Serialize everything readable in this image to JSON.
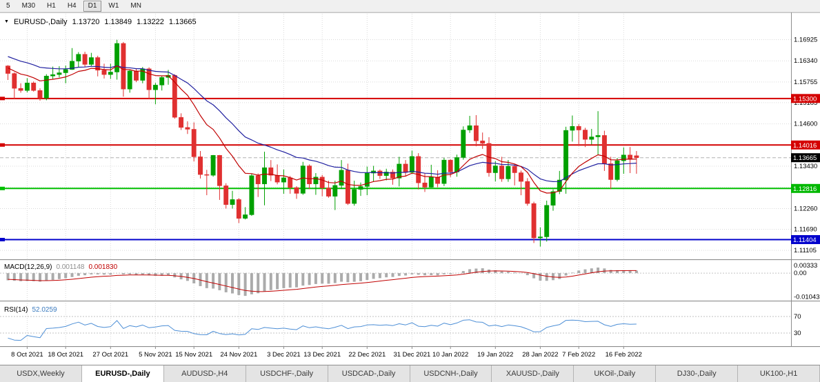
{
  "toolbar": {
    "timeframes": [
      "5",
      "M30",
      "H1",
      "H4",
      "D1",
      "W1",
      "MN"
    ],
    "active": "D1"
  },
  "chart": {
    "symbol": "EURUSD-,Daily",
    "ohlc": {
      "open": "1.13720",
      "high": "1.13849",
      "low": "1.13222",
      "close": "1.13665"
    }
  },
  "price_axis": {
    "labels": [
      {
        "text": "1.16925",
        "price": 1.16925
      },
      {
        "text": "1.16340",
        "price": 1.1634
      },
      {
        "text": "1.15755",
        "price": 1.15755
      },
      {
        "text": "1.15185",
        "price": 1.15185
      },
      {
        "text": "1.14600",
        "price": 1.146
      },
      {
        "text": "1.13430",
        "price": 1.1343
      },
      {
        "text": "1.12260",
        "price": 1.1226
      },
      {
        "text": "1.11690",
        "price": 1.1169
      },
      {
        "text": "1.11105",
        "price": 1.11105
      }
    ],
    "grid_prices": [
      1.16925,
      1.1634,
      1.15755,
      1.15185,
      1.146,
      1.14015,
      1.1343,
      1.12845,
      1.1226,
      1.1169,
      1.11105
    ],
    "tags": [
      {
        "text": "1.15300",
        "price": 1.153,
        "color": "#d40000"
      },
      {
        "text": "1.14016",
        "price": 1.14016,
        "color": "#d40000"
      },
      {
        "text": "1.13665",
        "price": 1.13665,
        "color": "#000000",
        "current": true
      },
      {
        "text": "1.12816",
        "price": 1.12816,
        "color": "#00b800"
      },
      {
        "text": "1.11404",
        "price": 1.11404,
        "color": "#0000cc"
      }
    ],
    "current_price": {
      "text": "1.13665",
      "price": 1.13665
    }
  },
  "hlines": [
    {
      "label": "1.15300",
      "price": 1.153,
      "color": "#d40000"
    },
    {
      "label": "1.14016",
      "price": 1.14016,
      "color": "#d40000"
    },
    {
      "label": "1.12816",
      "price": 1.12816,
      "color": "#00c000"
    },
    {
      "label": "1.11404",
      "price": 1.11404,
      "color": "#0000cc"
    }
  ],
  "indicators": {
    "macd": {
      "label": "MACD(12,26,9)",
      "value_main": "0.001148",
      "value_signal": "0.001830",
      "axis": [
        {
          "text": "0.00333",
          "value": 0.00333
        },
        {
          "text": "0.00",
          "value": 0
        },
        {
          "text": "-0.01043",
          "value": -0.01043
        }
      ]
    },
    "rsi": {
      "label": "RSI(14)",
      "value": "52.0259",
      "levels": [
        {
          "text": "70",
          "value": 70
        },
        {
          "text": "30",
          "value": 30
        }
      ]
    }
  },
  "date_axis": {
    "ticks": [
      {
        "text": "8 Oct 2021",
        "index": 3
      },
      {
        "text": "18 Oct 2021",
        "index": 9
      },
      {
        "text": "27 Oct 2021",
        "index": 16
      },
      {
        "text": "5 Nov 2021",
        "index": 23
      },
      {
        "text": "15 Nov 2021",
        "index": 29
      },
      {
        "text": "24 Nov 2021",
        "index": 36
      },
      {
        "text": "3 Dec 2021",
        "index": 43
      },
      {
        "text": "13 Dec 2021",
        "index": 49
      },
      {
        "text": "22 Dec 2021",
        "index": 56
      },
      {
        "text": "31 Dec 2021",
        "index": 63
      },
      {
        "text": "10 Jan 2022",
        "index": 69
      },
      {
        "text": "19 Jan 2022",
        "index": 76
      },
      {
        "text": "28 Jan 2022",
        "index": 83
      },
      {
        "text": "7 Feb 2022",
        "index": 89
      },
      {
        "text": "16 Feb 2022",
        "index": 96
      }
    ]
  },
  "tabs": {
    "items": [
      "USDX,Weekly",
      "EURUSD-,Daily",
      "AUDUSD-,H4",
      "USDCHF-,Daily",
      "USDCAD-,Daily",
      "USDCNH-,Daily",
      "XAUUSD-,Daily",
      "UKOil-,Daily",
      "DJ30-,Daily",
      "UK100-,H1"
    ],
    "active_index": 1
  },
  "chart_data": {
    "type": "candlestick",
    "title": "EURUSD-,Daily",
    "symbol": "EURUSD",
    "period": "Daily",
    "price_range": [
      1.1088,
      1.176
    ],
    "macd_range": [
      -0.0118,
      0.0046
    ],
    "ma_periods": [
      12,
      26
    ],
    "macd_params": [
      12,
      26,
      9
    ],
    "rsi_period": 14,
    "colors": {
      "bull": "#00a000",
      "bear": "#e03030",
      "ma_fast": "#c00000",
      "ma_slow": "#2020a0",
      "macd_hist": "#ababab",
      "macd_signal": "#c00000",
      "rsi": "#4c8ed6",
      "grid": "#d9d9d9"
    },
    "pre_closes": [
      1.172,
      1.1712,
      1.1705,
      1.1698,
      1.169,
      1.1682,
      1.1675,
      1.1668,
      1.166,
      1.1652,
      1.1645,
      1.1638,
      1.163,
      1.1622,
      1.1615,
      1.1608,
      1.16,
      1.1592,
      1.1585,
      1.1578
    ],
    "ohlc": [
      [
        1.162,
        1.1622,
        1.1581,
        1.1599
      ],
      [
        1.1599,
        1.1602,
        1.1529,
        1.1558
      ],
      [
        1.1558,
        1.1572,
        1.1546,
        1.1552
      ],
      [
        1.1552,
        1.1586,
        1.1547,
        1.1573
      ],
      [
        1.1573,
        1.1577,
        1.1549,
        1.1552
      ],
      [
        1.1552,
        1.1558,
        1.1524,
        1.1531
      ],
      [
        1.1531,
        1.1597,
        1.1525,
        1.1592
      ],
      [
        1.1592,
        1.1618,
        1.1582,
        1.1596
      ],
      [
        1.1596,
        1.1619,
        1.1588,
        1.1601
      ],
      [
        1.1601,
        1.1621,
        1.1572,
        1.161
      ],
      [
        1.161,
        1.1669,
        1.1609,
        1.1633
      ],
      [
        1.1633,
        1.1658,
        1.1617,
        1.1652
      ],
      [
        1.1652,
        1.1659,
        1.1617,
        1.1624
      ],
      [
        1.1624,
        1.1656,
        1.162,
        1.1643
      ],
      [
        1.1643,
        1.1648,
        1.1591,
        1.1608
      ],
      [
        1.1608,
        1.1626,
        1.1585,
        1.1596
      ],
      [
        1.1596,
        1.1626,
        1.1584,
        1.1603
      ],
      [
        1.1603,
        1.1692,
        1.1582,
        1.1682
      ],
      [
        1.1682,
        1.1686,
        1.1535,
        1.1556
      ],
      [
        1.1556,
        1.1609,
        1.1546,
        1.1606
      ],
      [
        1.1606,
        1.1612,
        1.1575,
        1.158
      ],
      [
        1.158,
        1.1617,
        1.1572,
        1.1612
      ],
      [
        1.1612,
        1.1616,
        1.1528,
        1.1554
      ],
      [
        1.1554,
        1.1573,
        1.1514,
        1.1567
      ],
      [
        1.1567,
        1.1593,
        1.1552,
        1.1588
      ],
      [
        1.1588,
        1.1609,
        1.1568,
        1.1594
      ],
      [
        1.1594,
        1.1597,
        1.1474,
        1.1478
      ],
      [
        1.1478,
        1.1489,
        1.1443,
        1.145
      ],
      [
        1.145,
        1.1467,
        1.1432,
        1.1445
      ],
      [
        1.1445,
        1.1464,
        1.1356,
        1.1369
      ],
      [
        1.1369,
        1.1385,
        1.1309,
        1.132
      ],
      [
        1.132,
        1.1333,
        1.1263,
        1.1318
      ],
      [
        1.1318,
        1.1374,
        1.1314,
        1.1373
      ],
      [
        1.1373,
        1.1374,
        1.125,
        1.1289
      ],
      [
        1.1289,
        1.1296,
        1.1226,
        1.1237
      ],
      [
        1.1237,
        1.1275,
        1.1226,
        1.1251
      ],
      [
        1.1251,
        1.1255,
        1.1186,
        1.1199
      ],
      [
        1.1199,
        1.123,
        1.1196,
        1.1209
      ],
      [
        1.1209,
        1.1323,
        1.1206,
        1.1317
      ],
      [
        1.1317,
        1.1323,
        1.1258,
        1.1294
      ],
      [
        1.1294,
        1.1383,
        1.1235,
        1.1339
      ],
      [
        1.1339,
        1.136,
        1.1302,
        1.1318
      ],
      [
        1.1318,
        1.1348,
        1.1293,
        1.1299
      ],
      [
        1.1299,
        1.1334,
        1.1267,
        1.1311
      ],
      [
        1.1311,
        1.1316,
        1.1267,
        1.1284
      ],
      [
        1.1284,
        1.1288,
        1.1253,
        1.1268
      ],
      [
        1.1268,
        1.1355,
        1.1264,
        1.1344
      ],
      [
        1.1344,
        1.1348,
        1.128,
        1.1294
      ],
      [
        1.1294,
        1.1324,
        1.1264,
        1.1313
      ],
      [
        1.1313,
        1.1319,
        1.126,
        1.1283
      ],
      [
        1.1283,
        1.1303,
        1.1256,
        1.126
      ],
      [
        1.126,
        1.1303,
        1.1222,
        1.129
      ],
      [
        1.129,
        1.136,
        1.128,
        1.1332
      ],
      [
        1.1332,
        1.135,
        1.1236,
        1.124
      ],
      [
        1.124,
        1.1303,
        1.1234,
        1.1279
      ],
      [
        1.1279,
        1.1298,
        1.1261,
        1.1287
      ],
      [
        1.1287,
        1.1342,
        1.1263,
        1.1324
      ],
      [
        1.1324,
        1.1344,
        1.13,
        1.133
      ],
      [
        1.133,
        1.1334,
        1.1308,
        1.1317
      ],
      [
        1.1317,
        1.1336,
        1.1304,
        1.1327
      ],
      [
        1.1327,
        1.1334,
        1.1292,
        1.131
      ],
      [
        1.131,
        1.1369,
        1.1287,
        1.1349
      ],
      [
        1.1349,
        1.136,
        1.1316,
        1.1326
      ],
      [
        1.1326,
        1.1386,
        1.1321,
        1.137
      ],
      [
        1.137,
        1.1379,
        1.1279,
        1.1297
      ],
      [
        1.1297,
        1.1324,
        1.1272,
        1.1285
      ],
      [
        1.1285,
        1.1347,
        1.1284,
        1.1313
      ],
      [
        1.1313,
        1.1332,
        1.1285,
        1.1295
      ],
      [
        1.1295,
        1.1366,
        1.1288,
        1.136
      ],
      [
        1.136,
        1.1362,
        1.1313,
        1.1327
      ],
      [
        1.1327,
        1.1375,
        1.1314,
        1.1367
      ],
      [
        1.1367,
        1.1453,
        1.1361,
        1.1443
      ],
      [
        1.1443,
        1.1482,
        1.1435,
        1.1455
      ],
      [
        1.1455,
        1.1484,
        1.1398,
        1.1413
      ],
      [
        1.1413,
        1.1436,
        1.1391,
        1.1406
      ],
      [
        1.1406,
        1.1423,
        1.1314,
        1.1325
      ],
      [
        1.1325,
        1.1357,
        1.1301,
        1.1344
      ],
      [
        1.1344,
        1.1369,
        1.13,
        1.1308
      ],
      [
        1.1308,
        1.136,
        1.13,
        1.1343
      ],
      [
        1.1343,
        1.1349,
        1.129,
        1.1325
      ],
      [
        1.1325,
        1.1331,
        1.1263,
        1.1301
      ],
      [
        1.1301,
        1.131,
        1.1234,
        1.124
      ],
      [
        1.124,
        1.1245,
        1.1131,
        1.1145
      ],
      [
        1.1145,
        1.1174,
        1.1121,
        1.1148
      ],
      [
        1.1148,
        1.1248,
        1.1135,
        1.1235
      ],
      [
        1.1235,
        1.1279,
        1.122,
        1.1273
      ],
      [
        1.1273,
        1.133,
        1.1266,
        1.1305
      ],
      [
        1.1305,
        1.1452,
        1.1267,
        1.1442
      ],
      [
        1.1442,
        1.1483,
        1.1411,
        1.1453
      ],
      [
        1.1453,
        1.1459,
        1.1399,
        1.1443
      ],
      [
        1.1443,
        1.1449,
        1.1396,
        1.1417
      ],
      [
        1.1417,
        1.1446,
        1.1403,
        1.1424
      ],
      [
        1.1424,
        1.1495,
        1.1375,
        1.1428
      ],
      [
        1.1428,
        1.1441,
        1.133,
        1.135
      ],
      [
        1.135,
        1.1369,
        1.128,
        1.1306
      ],
      [
        1.1306,
        1.1366,
        1.1301,
        1.1358
      ],
      [
        1.1358,
        1.1395,
        1.1322,
        1.1374
      ],
      [
        1.1374,
        1.1396,
        1.1324,
        1.1362
      ],
      [
        1.1372,
        1.13849,
        1.13222,
        1.13665
      ]
    ]
  }
}
